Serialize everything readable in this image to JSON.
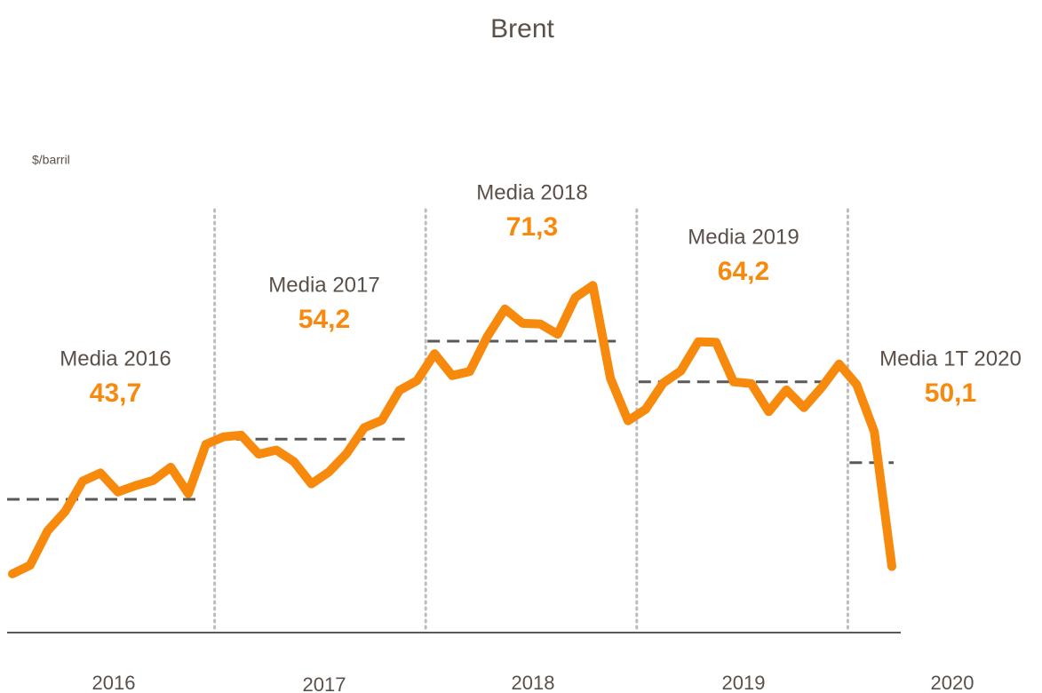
{
  "chart_data": {
    "type": "line",
    "title": "Brent",
    "y_label": "$/barril",
    "x_labels": [
      "2016",
      "2017",
      "2018",
      "2019",
      "2020"
    ],
    "series": [
      {
        "name": "Brent",
        "color": "#f7890c",
        "values": [
          30.7,
          32.2,
          38.2,
          41.6,
          46.9,
          48.3,
          45.0,
          46.1,
          47.0,
          49.3,
          44.7,
          53.3,
          54.6,
          54.9,
          51.6,
          52.3,
          50.3,
          46.4,
          48.5,
          51.7,
          56.2,
          57.5,
          62.7,
          64.4,
          69.1,
          65.3,
          66.0,
          72.1,
          76.9,
          74.4,
          74.3,
          72.5,
          78.9,
          81.0,
          64.8,
          57.4,
          59.4,
          64.0,
          66.1,
          71.2,
          71.1,
          64.2,
          63.9,
          59.0,
          62.8,
          59.7,
          63.2,
          67.3,
          63.7,
          55.5,
          32.0
        ]
      }
    ],
    "averages": [
      {
        "label": "Media 2016",
        "value": 43.7,
        "value_label": "43,7"
      },
      {
        "label": "Media 2017",
        "value": 54.2,
        "value_label": "54,2"
      },
      {
        "label": "Media 2018",
        "value": 71.3,
        "value_label": "71,3"
      },
      {
        "label": "Media 2019",
        "value": 64.2,
        "value_label": "64,2"
      },
      {
        "label": "Media 1T 2020",
        "value": 50.1,
        "value_label": "50,1"
      }
    ],
    "ylim": [
      20,
      95
    ]
  }
}
